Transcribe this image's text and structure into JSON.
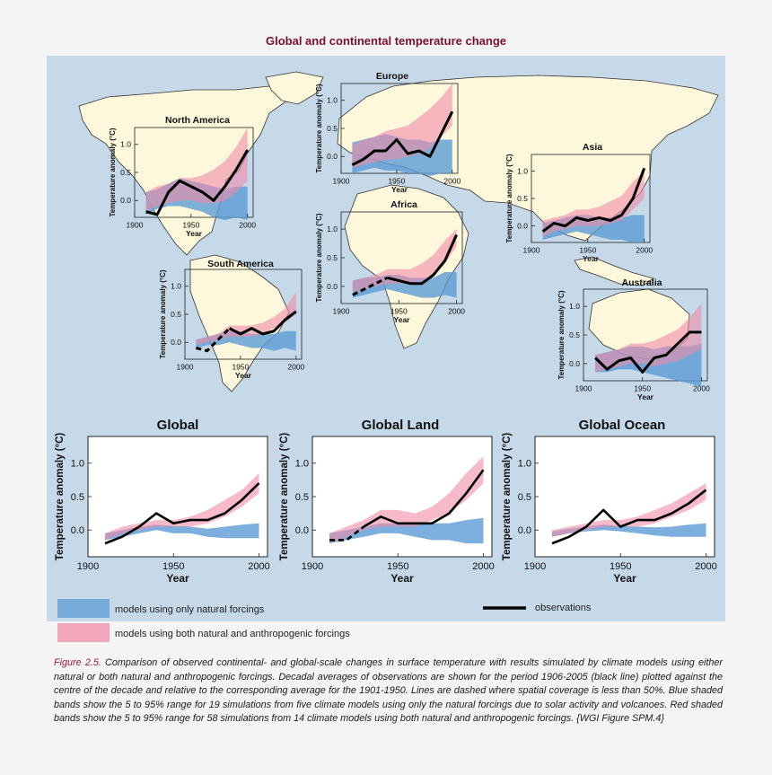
{
  "figure_title": "Global and continental temperature change",
  "caption": {
    "label": "Figure 2.5.",
    "text": " Comparison of observed continental- and global-scale changes in surface temperature with results simulated by climate models using either natural or both natural and anthropogenic forcings. Decadal averages of observations are shown for the period 1906-2005 (black line) plotted against the centre of the decade and relative to the corresponding average for the 1901-1950. Lines are dashed where spatial coverage is less than 50%. Blue shaded bands show the 5 to 95% range for 19 simulations from five climate models using only the natural forcings due to solar activity and volcanoes. Red shaded bands show the 5 to 95% range for 58 simulations from 14 climate models using both natural and anthropogenic forcings. {WGI Figure SPM.4}"
  },
  "legend": {
    "natural": "models using only natural forcings",
    "both": "models using both natural and anthropogenic forcings",
    "observations": "observations"
  },
  "colors": {
    "natural": "#5b9bd5",
    "both": "#f08ca8",
    "observations": "#000000",
    "ocean": "#c6d9e8",
    "land": "#fdf8dc",
    "title": "#7a1030"
  },
  "chart_data": [
    {
      "type": "area",
      "title": "North America",
      "xlabel": "Year",
      "ylabel": "Temperature anomaly (°C)",
      "xlim": [
        1900,
        2005
      ],
      "ylim": [
        -0.3,
        1.3
      ],
      "x_ticks": [
        1900,
        1950,
        2000
      ],
      "y_ticks": [
        0.0,
        0.5,
        1.0
      ],
      "x": [
        1910,
        1920,
        1930,
        1940,
        1950,
        1960,
        1970,
        1980,
        1990,
        2000
      ],
      "series": [
        {
          "name": "models using only natural forcings",
          "lower": [
            -0.25,
            -0.15,
            -0.1,
            -0.1,
            -0.15,
            -0.2,
            -0.3,
            -0.35,
            -0.3,
            -0.35
          ],
          "upper": [
            0.15,
            0.2,
            0.3,
            0.4,
            0.35,
            0.3,
            0.25,
            0.2,
            0.25,
            0.25
          ]
        },
        {
          "name": "models using both natural and anthropogenic forcings",
          "lower": [
            -0.2,
            -0.1,
            -0.05,
            0.0,
            0.0,
            -0.05,
            -0.05,
            0.0,
            0.15,
            0.35
          ],
          "upper": [
            0.15,
            0.25,
            0.3,
            0.4,
            0.4,
            0.45,
            0.55,
            0.7,
            0.95,
            1.3
          ]
        },
        {
          "name": "observations",
          "values": [
            -0.2,
            -0.25,
            0.15,
            0.35,
            0.25,
            0.15,
            0.0,
            0.25,
            0.55,
            0.9
          ],
          "dashed_until_index": 0
        }
      ]
    },
    {
      "type": "area",
      "title": "Europe",
      "xlabel": "Year",
      "ylabel": "Temperature anomaly (°C)",
      "xlim": [
        1900,
        2005
      ],
      "ylim": [
        -0.3,
        1.3
      ],
      "x_ticks": [
        1900,
        1950,
        2000
      ],
      "y_ticks": [
        0.0,
        0.5,
        1.0
      ],
      "x": [
        1910,
        1920,
        1930,
        1940,
        1950,
        1960,
        1970,
        1980,
        1990,
        2000
      ],
      "series": [
        {
          "name": "models using only natural forcings",
          "lower": [
            -0.3,
            -0.25,
            -0.2,
            -0.25,
            -0.25,
            -0.3,
            -0.3,
            -0.35,
            -0.3,
            -0.3
          ],
          "upper": [
            0.25,
            0.3,
            0.35,
            0.4,
            0.35,
            0.3,
            0.3,
            0.25,
            0.3,
            0.3
          ]
        },
        {
          "name": "models using both natural and anthropogenic forcings",
          "lower": [
            -0.2,
            -0.15,
            -0.1,
            -0.05,
            -0.05,
            0.0,
            0.05,
            0.15,
            0.35,
            0.55
          ],
          "upper": [
            0.2,
            0.3,
            0.35,
            0.45,
            0.5,
            0.55,
            0.7,
            0.85,
            1.05,
            1.3
          ]
        },
        {
          "name": "observations",
          "values": [
            -0.15,
            -0.05,
            0.1,
            0.1,
            0.3,
            0.05,
            0.1,
            0.0,
            0.4,
            0.8
          ],
          "dashed_until_index": 0
        }
      ]
    },
    {
      "type": "area",
      "title": "Asia",
      "xlabel": "Year",
      "ylabel": "Temperature anomaly (°C)",
      "xlim": [
        1900,
        2005
      ],
      "ylim": [
        -0.3,
        1.3
      ],
      "x_ticks": [
        1900,
        1950,
        2000
      ],
      "y_ticks": [
        0.0,
        0.5,
        1.0
      ],
      "x": [
        1910,
        1920,
        1930,
        1940,
        1950,
        1960,
        1970,
        1980,
        1990,
        2000
      ],
      "series": [
        {
          "name": "models using only natural forcings",
          "lower": [
            -0.25,
            -0.2,
            -0.15,
            -0.1,
            -0.15,
            -0.2,
            -0.25,
            -0.25,
            -0.3,
            -0.3
          ],
          "upper": [
            0.05,
            0.1,
            0.15,
            0.2,
            0.2,
            0.15,
            0.15,
            0.15,
            0.2,
            0.2
          ]
        },
        {
          "name": "models using both natural and anthropogenic forcings",
          "lower": [
            -0.2,
            -0.1,
            -0.05,
            0.0,
            0.0,
            0.0,
            0.05,
            0.1,
            0.3,
            0.5
          ],
          "upper": [
            0.1,
            0.15,
            0.2,
            0.3,
            0.3,
            0.35,
            0.45,
            0.55,
            0.8,
            1.0
          ]
        },
        {
          "name": "observations",
          "values": [
            -0.1,
            0.05,
            0.0,
            0.15,
            0.1,
            0.15,
            0.1,
            0.2,
            0.5,
            1.05
          ],
          "dashed_until_index": 0
        }
      ]
    },
    {
      "type": "area",
      "title": "Africa",
      "xlabel": "Year",
      "ylabel": "Temperature anomaly (°C)",
      "xlim": [
        1900,
        2005
      ],
      "ylim": [
        -0.3,
        1.3
      ],
      "x_ticks": [
        1900,
        1950,
        2000
      ],
      "y_ticks": [
        0.0,
        0.5,
        1.0
      ],
      "x": [
        1910,
        1920,
        1930,
        1940,
        1950,
        1960,
        1970,
        1980,
        1990,
        2000
      ],
      "series": [
        {
          "name": "models using only natural forcings",
          "lower": [
            -0.2,
            -0.15,
            -0.1,
            -0.05,
            -0.1,
            -0.15,
            -0.2,
            -0.2,
            -0.15,
            -0.2
          ],
          "upper": [
            0.1,
            0.15,
            0.15,
            0.2,
            0.2,
            0.15,
            0.15,
            0.15,
            0.25,
            0.25
          ]
        },
        {
          "name": "models using both natural and anthropogenic forcings",
          "lower": [
            -0.1,
            -0.05,
            0.0,
            0.05,
            0.05,
            0.05,
            0.1,
            0.2,
            0.4,
            0.7
          ],
          "upper": [
            0.1,
            0.15,
            0.2,
            0.3,
            0.3,
            0.3,
            0.4,
            0.55,
            0.8,
            1.0
          ]
        },
        {
          "name": "observations",
          "values": [
            -0.15,
            -0.05,
            0.05,
            0.15,
            0.1,
            0.05,
            0.05,
            0.2,
            0.45,
            0.9
          ],
          "dashed_until_index": 3
        }
      ]
    },
    {
      "type": "area",
      "title": "South America",
      "xlabel": "Year",
      "ylabel": "Temperature anomaly (°C)",
      "xlim": [
        1900,
        2005
      ],
      "ylim": [
        -0.3,
        1.3
      ],
      "x_ticks": [
        1900,
        1950,
        2000
      ],
      "y_ticks": [
        0.0,
        0.5,
        1.0
      ],
      "x": [
        1910,
        1920,
        1930,
        1940,
        1950,
        1960,
        1970,
        1980,
        1990,
        2000
      ],
      "series": [
        {
          "name": "models using only natural forcings",
          "lower": [
            -0.1,
            -0.05,
            -0.05,
            0.0,
            -0.05,
            -0.1,
            -0.1,
            -0.15,
            -0.1,
            -0.15
          ],
          "upper": [
            0.05,
            0.1,
            0.15,
            0.2,
            0.2,
            0.15,
            0.15,
            0.15,
            0.2,
            0.2
          ]
        },
        {
          "name": "models using both natural and anthropogenic forcings",
          "lower": [
            -0.05,
            0.0,
            0.05,
            0.1,
            0.1,
            0.1,
            0.15,
            0.25,
            0.35,
            0.5
          ],
          "upper": [
            0.05,
            0.1,
            0.15,
            0.3,
            0.3,
            0.3,
            0.35,
            0.45,
            0.6,
            0.9
          ]
        },
        {
          "name": "observations",
          "values": [
            -0.1,
            -0.15,
            0.05,
            0.25,
            0.15,
            0.25,
            0.15,
            0.2,
            0.4,
            0.55
          ],
          "dashed_until_index": 3
        }
      ]
    },
    {
      "type": "area",
      "title": "Australia",
      "xlabel": "Year",
      "ylabel": "Temperature anomaly (°C)",
      "xlim": [
        1900,
        2005
      ],
      "ylim": [
        -0.3,
        1.3
      ],
      "x_ticks": [
        1900,
        1950,
        2000
      ],
      "y_ticks": [
        0.0,
        0.5,
        1.0
      ],
      "x": [
        1910,
        1920,
        1930,
        1940,
        1950,
        1960,
        1970,
        1980,
        1990,
        2000
      ],
      "series": [
        {
          "name": "models using only natural forcings",
          "lower": [
            -0.15,
            -0.15,
            -0.1,
            -0.1,
            -0.15,
            -0.2,
            -0.25,
            -0.3,
            -0.35,
            -0.4
          ],
          "upper": [
            0.15,
            0.2,
            0.25,
            0.3,
            0.3,
            0.25,
            0.3,
            0.3,
            0.3,
            0.35
          ]
        },
        {
          "name": "models using both natural and anthropogenic forcings",
          "lower": [
            -0.15,
            -0.1,
            -0.05,
            0.0,
            0.0,
            -0.05,
            0.0,
            0.05,
            0.15,
            0.25
          ],
          "upper": [
            0.15,
            0.2,
            0.25,
            0.35,
            0.35,
            0.4,
            0.5,
            0.6,
            0.8,
            1.05
          ]
        },
        {
          "name": "observations",
          "values": [
            0.1,
            -0.1,
            0.05,
            0.1,
            -0.15,
            0.1,
            0.15,
            0.35,
            0.55,
            0.55
          ],
          "dashed_until_index": 0
        }
      ]
    },
    {
      "type": "area",
      "title": "Global",
      "xlabel": "Year",
      "ylabel": "Temperature anomaly (°C)",
      "xlim": [
        1900,
        2005
      ],
      "ylim": [
        -0.4,
        1.4
      ],
      "x_ticks": [
        1900,
        1950,
        2000
      ],
      "y_ticks": [
        0.0,
        0.5,
        1.0
      ],
      "x": [
        1910,
        1920,
        1930,
        1940,
        1950,
        1960,
        1970,
        1980,
        1990,
        2000
      ],
      "series": [
        {
          "name": "models using only natural forcings",
          "lower": [
            -0.15,
            -0.1,
            -0.05,
            0.0,
            -0.05,
            -0.05,
            -0.1,
            -0.12,
            -0.12,
            -0.12
          ],
          "upper": [
            -0.05,
            0.0,
            0.05,
            0.08,
            0.06,
            0.05,
            0.02,
            0.05,
            0.08,
            0.1
          ]
        },
        {
          "name": "models using both natural and anthropogenic forcings",
          "lower": [
            -0.15,
            -0.05,
            0.0,
            0.05,
            0.05,
            0.05,
            0.1,
            0.2,
            0.35,
            0.55
          ],
          "upper": [
            -0.05,
            0.05,
            0.1,
            0.15,
            0.15,
            0.2,
            0.3,
            0.45,
            0.6,
            0.85
          ]
        },
        {
          "name": "observations",
          "values": [
            -0.2,
            -0.1,
            0.05,
            0.25,
            0.1,
            0.15,
            0.15,
            0.25,
            0.45,
            0.7
          ],
          "dashed_until_index": 0
        }
      ]
    },
    {
      "type": "area",
      "title": "Global Land",
      "xlabel": "Year",
      "ylabel": "Temperature anomaly (°C)",
      "xlim": [
        1900,
        2005
      ],
      "ylim": [
        -0.4,
        1.4
      ],
      "x_ticks": [
        1900,
        1950,
        2000
      ],
      "y_ticks": [
        0.0,
        0.5,
        1.0
      ],
      "x": [
        1910,
        1920,
        1930,
        1940,
        1950,
        1960,
        1970,
        1980,
        1990,
        2000
      ],
      "series": [
        {
          "name": "models using only natural forcings",
          "lower": [
            -0.2,
            -0.15,
            -0.1,
            -0.05,
            -0.05,
            -0.1,
            -0.15,
            -0.15,
            -0.2,
            -0.2
          ],
          "upper": [
            -0.05,
            0.0,
            0.05,
            0.1,
            0.1,
            0.1,
            0.1,
            0.1,
            0.15,
            0.18
          ]
        },
        {
          "name": "models using both natural and anthropogenic forcings",
          "lower": [
            -0.2,
            -0.1,
            0.0,
            0.05,
            0.05,
            0.05,
            0.15,
            0.25,
            0.45,
            0.7
          ],
          "upper": [
            -0.05,
            0.05,
            0.15,
            0.3,
            0.3,
            0.25,
            0.35,
            0.55,
            0.85,
            1.1
          ]
        },
        {
          "name": "observations",
          "values": [
            -0.15,
            -0.15,
            0.05,
            0.2,
            0.1,
            0.1,
            0.1,
            0.25,
            0.55,
            0.9
          ],
          "dashed_until_index": 2
        }
      ]
    },
    {
      "type": "area",
      "title": "Global Ocean",
      "xlabel": "Year",
      "ylabel": "Temperature anomaly (°C)",
      "xlim": [
        1900,
        2005
      ],
      "ylim": [
        -0.4,
        1.4
      ],
      "x_ticks": [
        1900,
        1950,
        2000
      ],
      "y_ticks": [
        0.0,
        0.5,
        1.0
      ],
      "x": [
        1910,
        1920,
        1930,
        1940,
        1950,
        1960,
        1970,
        1980,
        1990,
        2000
      ],
      "series": [
        {
          "name": "models using only natural forcings",
          "lower": [
            -0.1,
            -0.05,
            -0.02,
            0.0,
            -0.02,
            -0.05,
            -0.08,
            -0.1,
            -0.1,
            -0.1
          ],
          "upper": [
            -0.02,
            0.02,
            0.05,
            0.08,
            0.06,
            0.05,
            0.04,
            0.05,
            0.08,
            0.1
          ]
        },
        {
          "name": "models using both natural and anthropogenic forcings",
          "lower": [
            -0.1,
            -0.05,
            0.0,
            0.05,
            0.05,
            0.05,
            0.1,
            0.2,
            0.3,
            0.45
          ],
          "upper": [
            0.0,
            0.05,
            0.1,
            0.15,
            0.15,
            0.2,
            0.3,
            0.4,
            0.55,
            0.7
          ]
        },
        {
          "name": "observations",
          "values": [
            -0.2,
            -0.1,
            0.05,
            0.3,
            0.05,
            0.15,
            0.15,
            0.25,
            0.4,
            0.6
          ],
          "dashed_until_index": 0
        }
      ]
    }
  ]
}
